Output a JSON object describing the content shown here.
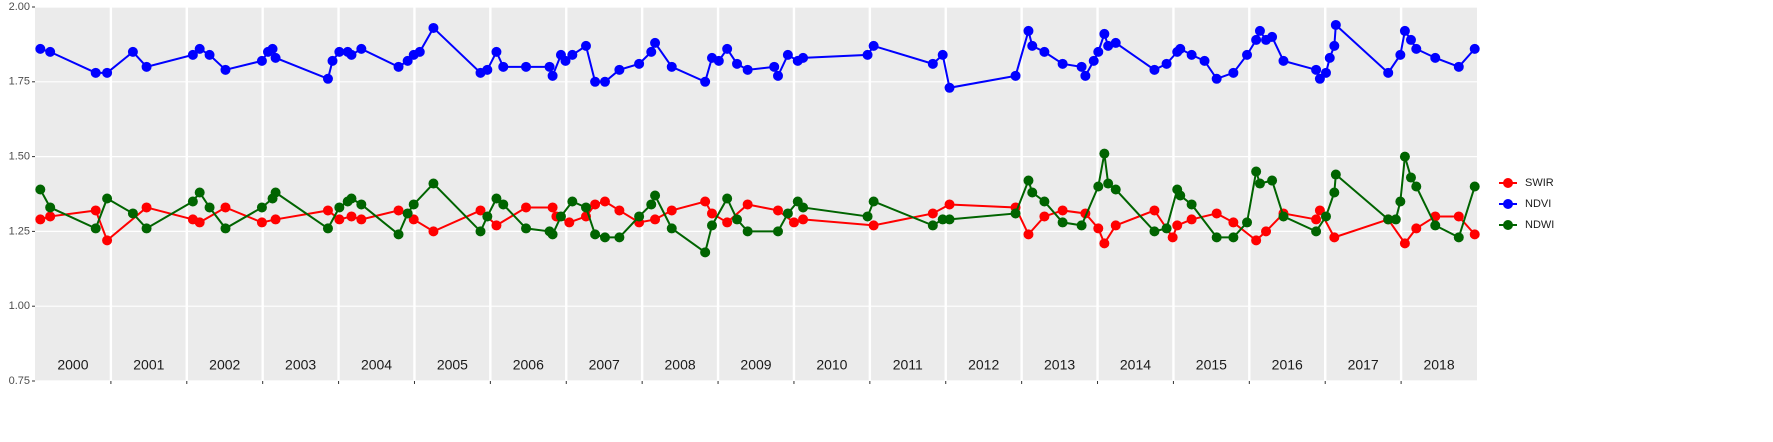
{
  "chart_data": {
    "type": "line",
    "ylim": [
      0.75,
      2.0
    ],
    "yticks": [
      0.75,
      {
        "value": 1.0,
        "label": "1.00"
      },
      1.25,
      {
        "value": 1.5,
        "label": "1.50"
      },
      1.75,
      {
        "value": 2.0,
        "label": "2.00"
      }
    ],
    "xlim": [
      2000,
      2019
    ],
    "xticks": [
      2001,
      2002,
      2003,
      2004,
      2005,
      2006,
      2007,
      2008,
      2009,
      2010,
      2011,
      2012,
      2013,
      2014,
      2015,
      2016,
      2017,
      2018
    ],
    "year_labels": [
      2000,
      2001,
      2002,
      2003,
      2004,
      2005,
      2006,
      2007,
      2008,
      2009,
      2010,
      2011,
      2012,
      2013,
      2014,
      2015,
      2016,
      2017,
      2018
    ],
    "grid": true,
    "legend": "right",
    "series": [
      {
        "name": "SWIR",
        "color": "#ff0000",
        "x": [
          2000.07,
          2000.2,
          2000.8,
          2000.95,
          2001.47,
          2002.08,
          2002.17,
          2002.51,
          2002.99,
          2003.17,
          2003.86,
          2004.01,
          2004.17,
          2004.3,
          2004.79,
          2004.99,
          2005.25,
          2005.87,
          2006.08,
          2006.47,
          2006.82,
          2006.87,
          2007.04,
          2007.26,
          2007.38,
          2007.51,
          2007.7,
          2007.96,
          2008.17,
          2008.39,
          2008.83,
          2008.92,
          2009.12,
          2009.39,
          2009.79,
          2010.0,
          2010.12,
          2011.05,
          2011.83,
          2012.05,
          2012.92,
          2013.09,
          2013.3,
          2013.54,
          2013.84,
          2014.01,
          2014.09,
          2014.24,
          2014.75,
          2014.99,
          2015.05,
          2015.24,
          2015.57,
          2015.79,
          2016.09,
          2016.22,
          2016.45,
          2016.88,
          2016.93,
          2017.12,
          2017.83,
          2018.05,
          2018.2,
          2018.45,
          2018.76,
          2018.97
        ],
        "values": [
          1.29,
          1.3,
          1.32,
          1.22,
          1.33,
          1.29,
          1.28,
          1.33,
          1.28,
          1.29,
          1.32,
          1.29,
          1.3,
          1.29,
          1.32,
          1.29,
          1.25,
          1.32,
          1.27,
          1.33,
          1.33,
          1.3,
          1.28,
          1.3,
          1.34,
          1.35,
          1.32,
          1.28,
          1.29,
          1.32,
          1.35,
          1.31,
          1.28,
          1.34,
          1.32,
          1.28,
          1.29,
          1.27,
          1.31,
          1.34,
          1.33,
          1.24,
          1.3,
          1.32,
          1.31,
          1.26,
          1.21,
          1.27,
          1.32,
          1.23,
          1.27,
          1.29,
          1.31,
          1.28,
          1.22,
          1.25,
          1.31,
          1.29,
          1.32,
          1.23,
          1.29,
          1.21,
          1.26,
          1.3,
          1.3,
          1.24
        ]
      },
      {
        "name": "NDVI",
        "color": "#0000ff",
        "x": [
          2000.07,
          2000.2,
          2000.8,
          2000.95,
          2001.29,
          2001.47,
          2002.08,
          2002.17,
          2002.3,
          2002.51,
          2002.99,
          2003.07,
          2003.13,
          2003.17,
          2003.86,
          2003.92,
          2004.01,
          2004.12,
          2004.17,
          2004.3,
          2004.79,
          2004.91,
          2004.99,
          2005.07,
          2005.25,
          2005.87,
          2005.96,
          2006.08,
          2006.17,
          2006.47,
          2006.78,
          2006.82,
          2006.93,
          2006.99,
          2007.08,
          2007.26,
          2007.38,
          2007.51,
          2007.7,
          2007.96,
          2008.12,
          2008.17,
          2008.39,
          2008.83,
          2008.92,
          2009.01,
          2009.12,
          2009.25,
          2009.39,
          2009.74,
          2009.79,
          2009.92,
          2010.05,
          2010.12,
          2010.97,
          2011.05,
          2011.83,
          2011.96,
          2012.05,
          2012.92,
          2013.09,
          2013.14,
          2013.3,
          2013.54,
          2013.79,
          2013.84,
          2013.95,
          2014.01,
          2014.09,
          2014.14,
          2014.24,
          2014.75,
          2014.91,
          2015.05,
          2015.09,
          2015.24,
          2015.41,
          2015.57,
          2015.79,
          2015.97,
          2016.09,
          2016.14,
          2016.22,
          2016.3,
          2016.45,
          2016.88,
          2016.93,
          2017.01,
          2017.06,
          2017.12,
          2017.14,
          2017.83,
          2017.99,
          2018.05,
          2018.13,
          2018.2,
          2018.45,
          2018.76,
          2018.97
        ],
        "values": [
          1.86,
          1.85,
          1.78,
          1.78,
          1.85,
          1.8,
          1.84,
          1.86,
          1.84,
          1.79,
          1.82,
          1.85,
          1.86,
          1.83,
          1.76,
          1.82,
          1.85,
          1.85,
          1.84,
          1.86,
          1.8,
          1.82,
          1.84,
          1.85,
          1.93,
          1.78,
          1.79,
          1.85,
          1.8,
          1.8,
          1.8,
          1.77,
          1.84,
          1.82,
          1.84,
          1.87,
          1.75,
          1.75,
          1.79,
          1.81,
          1.85,
          1.88,
          1.8,
          1.75,
          1.83,
          1.82,
          1.86,
          1.81,
          1.79,
          1.8,
          1.77,
          1.84,
          1.82,
          1.83,
          1.84,
          1.87,
          1.81,
          1.84,
          1.73,
          1.77,
          1.92,
          1.87,
          1.85,
          1.81,
          1.8,
          1.77,
          1.82,
          1.85,
          1.91,
          1.87,
          1.88,
          1.79,
          1.81,
          1.85,
          1.86,
          1.84,
          1.82,
          1.76,
          1.78,
          1.84,
          1.89,
          1.92,
          1.89,
          1.9,
          1.82,
          1.79,
          1.76,
          1.78,
          1.83,
          1.87,
          1.94,
          1.78,
          1.84,
          1.92,
          1.89,
          1.86,
          1.83,
          1.8,
          1.86
        ]
      },
      {
        "name": "NDWI",
        "color": "#006400",
        "x": [
          2000.07,
          2000.2,
          2000.8,
          2000.95,
          2001.29,
          2001.47,
          2002.08,
          2002.17,
          2002.3,
          2002.51,
          2002.99,
          2003.13,
          2003.17,
          2003.86,
          2004.01,
          2004.12,
          2004.17,
          2004.3,
          2004.79,
          2004.91,
          2004.99,
          2005.25,
          2005.87,
          2005.96,
          2006.08,
          2006.17,
          2006.47,
          2006.78,
          2006.82,
          2006.93,
          2007.08,
          2007.26,
          2007.38,
          2007.51,
          2007.7,
          2007.96,
          2008.12,
          2008.17,
          2008.39,
          2008.83,
          2008.92,
          2009.12,
          2009.25,
          2009.39,
          2009.79,
          2009.92,
          2010.05,
          2010.12,
          2010.97,
          2011.05,
          2011.83,
          2011.96,
          2012.05,
          2012.92,
          2013.09,
          2013.14,
          2013.3,
          2013.54,
          2013.79,
          2014.01,
          2014.09,
          2014.14,
          2014.24,
          2014.75,
          2014.91,
          2015.05,
          2015.09,
          2015.24,
          2015.57,
          2015.79,
          2015.97,
          2016.09,
          2016.14,
          2016.3,
          2016.45,
          2016.88,
          2017.01,
          2017.12,
          2017.14,
          2017.83,
          2017.93,
          2017.99,
          2018.05,
          2018.13,
          2018.2,
          2018.45,
          2018.76,
          2018.97
        ],
        "values": [
          1.39,
          1.33,
          1.26,
          1.36,
          1.31,
          1.26,
          1.35,
          1.38,
          1.33,
          1.26,
          1.33,
          1.36,
          1.38,
          1.26,
          1.33,
          1.35,
          1.36,
          1.34,
          1.24,
          1.31,
          1.34,
          1.41,
          1.25,
          1.3,
          1.36,
          1.34,
          1.26,
          1.25,
          1.24,
          1.3,
          1.35,
          1.33,
          1.24,
          1.23,
          1.23,
          1.3,
          1.34,
          1.37,
          1.26,
          1.18,
          1.27,
          1.36,
          1.29,
          1.25,
          1.25,
          1.31,
          1.35,
          1.33,
          1.3,
          1.35,
          1.27,
          1.29,
          1.29,
          1.31,
          1.42,
          1.38,
          1.35,
          1.28,
          1.27,
          1.4,
          1.51,
          1.41,
          1.39,
          1.25,
          1.26,
          1.39,
          1.37,
          1.34,
          1.23,
          1.23,
          1.28,
          1.45,
          1.41,
          1.42,
          1.3,
          1.25,
          1.3,
          1.38,
          1.44,
          1.29,
          1.29,
          1.35,
          1.5,
          1.43,
          1.4,
          1.27,
          1.23,
          1.4
        ]
      }
    ]
  }
}
